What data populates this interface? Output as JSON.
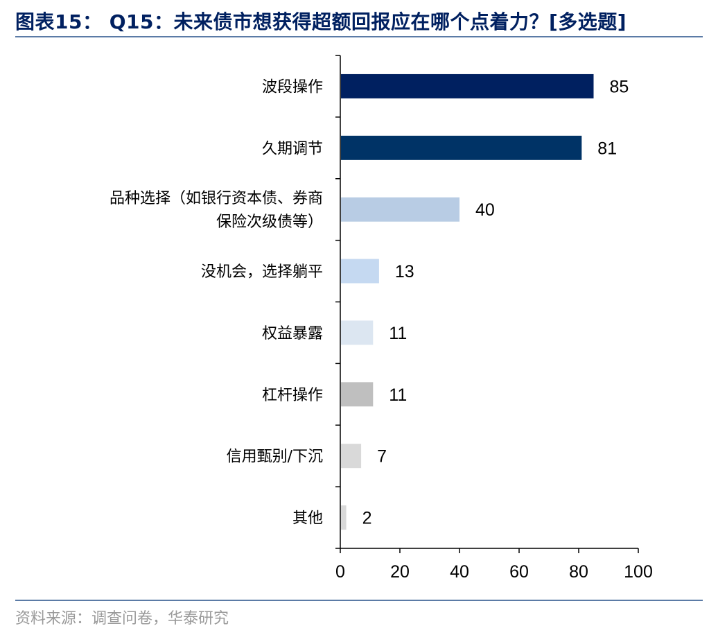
{
  "title": "图表15：  Q15：未来债市想获得超额回报应在哪个点着力？[多选题]",
  "source": "资料来源：调查问卷，华泰研究",
  "chart_data": {
    "type": "bar",
    "orientation": "horizontal",
    "categories": [
      [
        "波段操作"
      ],
      [
        "久期调节"
      ],
      [
        "品种选择（如银行资本债、券商",
        "保险次级债等）"
      ],
      [
        "没机会，选择躺平"
      ],
      [
        "权益暴露"
      ],
      [
        "杠杆操作"
      ],
      [
        "信用甄别/下沉"
      ],
      [
        "其他"
      ]
    ],
    "values": [
      85,
      81,
      40,
      13,
      11,
      11,
      7,
      2
    ],
    "value_labels": [
      "85",
      "81",
      "40",
      "13",
      "11",
      "11",
      "7",
      "2"
    ],
    "colors": [
      "#002060",
      "#003366",
      "#b8cce4",
      "#c5d9f1",
      "#dce6f1",
      "#bfbfbf",
      "#d9d9d9",
      "#d9d9d9"
    ],
    "xlim": [
      0,
      100
    ],
    "xticks": [
      "0",
      "20",
      "40",
      "60",
      "80",
      "100"
    ],
    "xlabel": "",
    "ylabel": "",
    "grid": false,
    "legend": "none"
  }
}
